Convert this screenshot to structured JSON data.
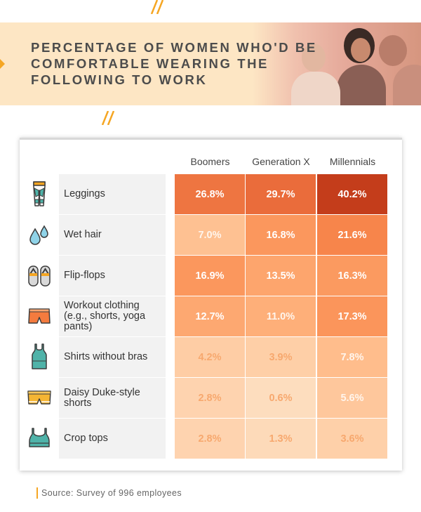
{
  "header": {
    "title": "PERCENTAGE OF WOMEN WHO'D BE COMFORTABLE WEARING THE FOLLOWING TO WORK"
  },
  "chart_data": {
    "type": "heatmap",
    "title": "PERCENTAGE OF WOMEN WHO'D BE COMFORTABLE WEARING THE FOLLOWING TO WORK",
    "columns": [
      "Boomers",
      "Generation X",
      "Millennials"
    ],
    "rows": [
      {
        "label": "Leggings",
        "icon": "leggings-icon",
        "values": [
          26.8,
          29.7,
          40.2
        ],
        "labels": [
          "26.8%",
          "29.7%",
          "40.2%"
        ]
      },
      {
        "label": "Wet hair",
        "icon": "water-drops-icon",
        "values": [
          7.0,
          16.8,
          21.6
        ],
        "labels": [
          "7.0%",
          "16.8%",
          "21.6%"
        ]
      },
      {
        "label": "Flip-flops",
        "icon": "flip-flops-icon",
        "values": [
          16.9,
          13.5,
          16.3
        ],
        "labels": [
          "16.9%",
          "13.5%",
          "16.3%"
        ]
      },
      {
        "label": "Workout clothing (e.g., shorts, yoga pants)",
        "icon": "workout-shorts-icon",
        "values": [
          12.7,
          11.0,
          17.3
        ],
        "labels": [
          "12.7%",
          "11.0%",
          "17.3%"
        ]
      },
      {
        "label": "Shirts without bras",
        "icon": "tank-top-icon",
        "values": [
          4.2,
          3.9,
          7.8
        ],
        "labels": [
          "4.2%",
          "3.9%",
          "7.8%"
        ]
      },
      {
        "label": "Daisy Duke-style shorts",
        "icon": "denim-shorts-icon",
        "values": [
          2.8,
          0.6,
          5.6
        ],
        "labels": [
          "2.8%",
          "0.6%",
          "5.6%"
        ]
      },
      {
        "label": "Crop tops",
        "icon": "crop-top-icon",
        "values": [
          2.8,
          1.3,
          3.6
        ],
        "labels": [
          "2.8%",
          "1.3%",
          "3.6%"
        ]
      }
    ],
    "color_scale": [
      "#fde0c2",
      "#ffb37d",
      "#f98a4e",
      "#e96b3a",
      "#c43d1b"
    ]
  },
  "source": "Source: Survey of 996 employees",
  "colors": {
    "accent": "#f5a623",
    "header_bg": "#fde6c4",
    "label_bg": "#f2f2f2"
  }
}
